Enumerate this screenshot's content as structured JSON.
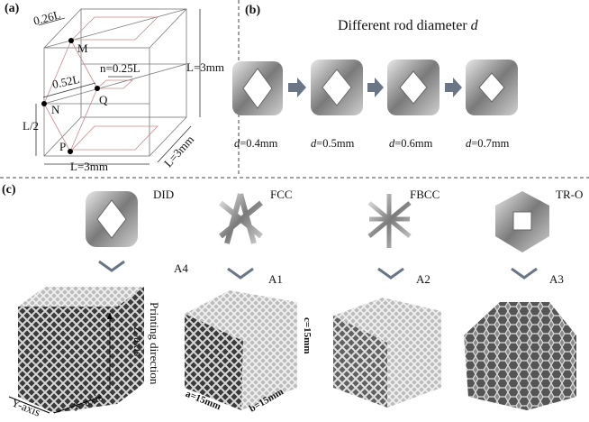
{
  "panel_a": {
    "label": "(a)",
    "dim_026": "0.26L",
    "point_m": "M",
    "n_label": "n=0.25L",
    "dim_052": "0.52L",
    "point_q": "Q",
    "point_n": "N",
    "point_p": "P",
    "half": "L/2",
    "height": "L=3mm",
    "width": "L=3mm",
    "depth": "L=3mm"
  },
  "panel_b": {
    "label": "(b)",
    "title_prefix": "Different rod diameter ",
    "title_var": "d",
    "cells": [
      {
        "var": "d",
        "value": "=0.4mm"
      },
      {
        "var": "d",
        "value": "=0.5mm"
      },
      {
        "var": "d",
        "value": "=0.6mm"
      },
      {
        "var": "d",
        "value": "=0.7mm"
      }
    ]
  },
  "panel_c": {
    "label": "(c)",
    "structures": [
      {
        "name": "DID",
        "sample": "A4"
      },
      {
        "name": "FCC",
        "sample": "A1"
      },
      {
        "name": "FBCC",
        "sample": "A2"
      },
      {
        "name": "TR-O",
        "sample": "A3"
      }
    ],
    "printing_direction": "Printing direction",
    "z_axis": "Z-axis",
    "y_axis": "Y-axis",
    "x_axis": "X-axis",
    "dim_a": "a=15mm",
    "dim_b": "b=15mm",
    "dim_c": "c=15mm"
  },
  "colors": {
    "line": "#555555",
    "pink_line": "#c98a8a",
    "metal": "#9a9a9a",
    "arrow": "#6a7585"
  }
}
